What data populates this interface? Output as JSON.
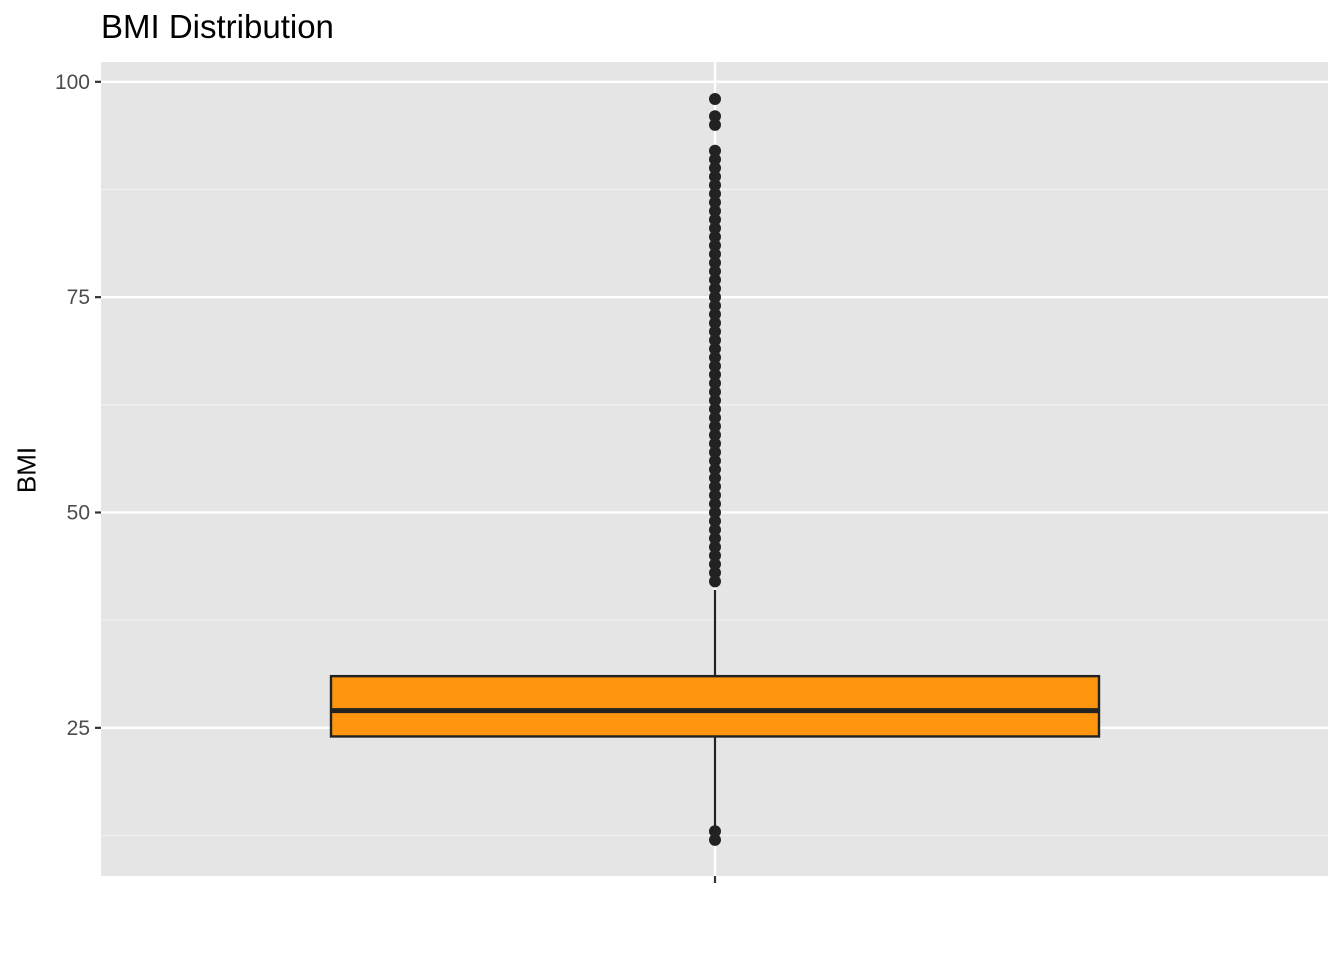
{
  "chart_data": {
    "type": "boxplot",
    "title": "BMI Distribution",
    "xlabel": "",
    "ylabel": "BMI",
    "ylim": [
      7.8,
      102.3
    ],
    "y_ticks": [
      25,
      50,
      75,
      100
    ],
    "y_tick_labels": [
      "25",
      "50",
      "75",
      "100"
    ],
    "y_minor_ticks": [
      12.5,
      37.5,
      62.5,
      87.5
    ],
    "grid": true,
    "legend": "none",
    "box": {
      "lower_whisker": 12,
      "q1": 24,
      "median": 27,
      "q3": 31,
      "upper_whisker": 41,
      "outliers": [
        12,
        13,
        42,
        43,
        44,
        45,
        46,
        47,
        48,
        49,
        50,
        51,
        52,
        53,
        54,
        55,
        56,
        57,
        58,
        59,
        60,
        61,
        62,
        63,
        64,
        65,
        66,
        67,
        68,
        69,
        70,
        71,
        72,
        73,
        74,
        75,
        76,
        77,
        78,
        79,
        80,
        81,
        82,
        83,
        84,
        85,
        86,
        87,
        88,
        89,
        90,
        91,
        92,
        95,
        96,
        98
      ]
    },
    "colors": {
      "box_fill": "#ff950e",
      "box_line": "#222222",
      "panel_bg": "#e5e5e5",
      "grid_major": "#ffffff",
      "grid_minor": "#f2f2f2",
      "outlier": "#222222"
    }
  }
}
